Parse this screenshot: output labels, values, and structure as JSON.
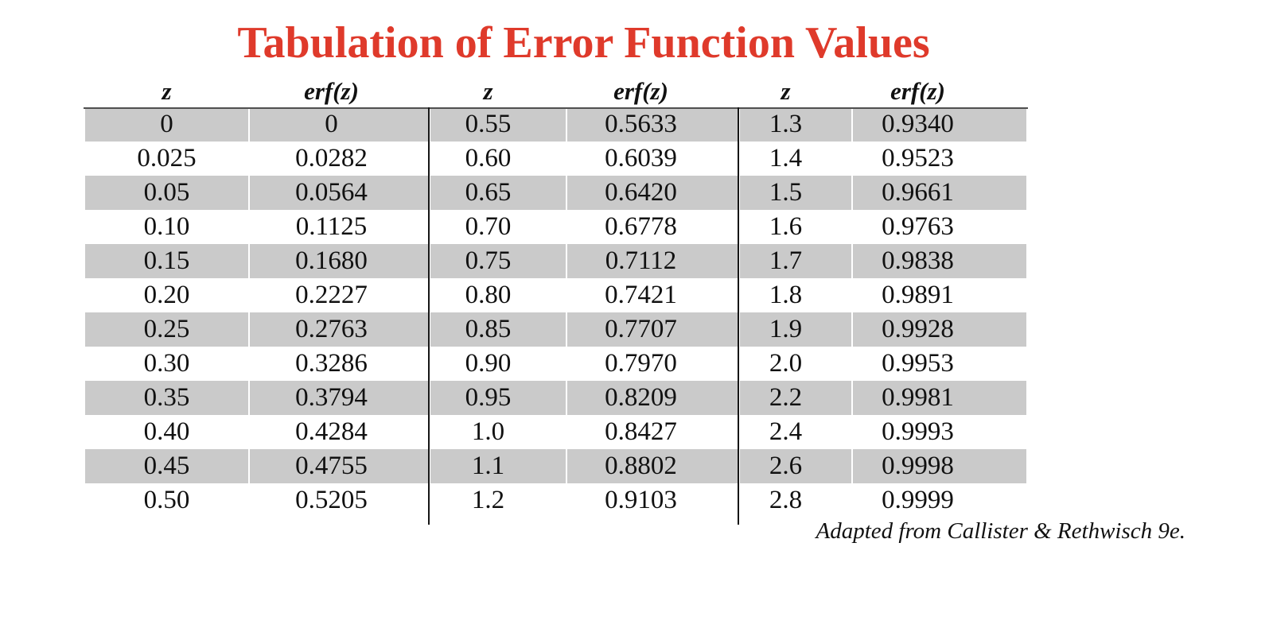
{
  "title": "Tabulation of Error Function Values",
  "footer_credit": "Adapted from Callister & Rethwisch 9e.",
  "colors": {
    "title_red": "#df3a2b",
    "stripe_gray": "#cacaca",
    "header_rule_gray": "#4f4f4f",
    "divider_black": "#161616",
    "text_black": "#111111",
    "background": "#ffffff"
  },
  "table": {
    "headers": [
      "z",
      "erf(z)",
      "z",
      "erf(z)",
      "z",
      "erf(z)"
    ],
    "rows": [
      [
        "0",
        "0",
        "0.55",
        "0.5633",
        "1.3",
        "0.9340"
      ],
      [
        "0.025",
        "0.0282",
        "0.60",
        "0.6039",
        "1.4",
        "0.9523"
      ],
      [
        "0.05",
        "0.0564",
        "0.65",
        "0.6420",
        "1.5",
        "0.9661"
      ],
      [
        "0.10",
        "0.1125",
        "0.70",
        "0.6778",
        "1.6",
        "0.9763"
      ],
      [
        "0.15",
        "0.1680",
        "0.75",
        "0.7112",
        "1.7",
        "0.9838"
      ],
      [
        "0.20",
        "0.2227",
        "0.80",
        "0.7421",
        "1.8",
        "0.9891"
      ],
      [
        "0.25",
        "0.2763",
        "0.85",
        "0.7707",
        "1.9",
        "0.9928"
      ],
      [
        "0.30",
        "0.3286",
        "0.90",
        "0.7970",
        "2.0",
        "0.9953"
      ],
      [
        "0.35",
        "0.3794",
        "0.95",
        "0.8209",
        "2.2",
        "0.9981"
      ],
      [
        "0.40",
        "0.4284",
        "1.0",
        "0.8427",
        "2.4",
        "0.9993"
      ],
      [
        "0.45",
        "0.4755",
        "1.1",
        "0.8802",
        "2.6",
        "0.9998"
      ],
      [
        "0.50",
        "0.5205",
        "1.2",
        "0.9103",
        "2.8",
        "0.9999"
      ]
    ]
  }
}
